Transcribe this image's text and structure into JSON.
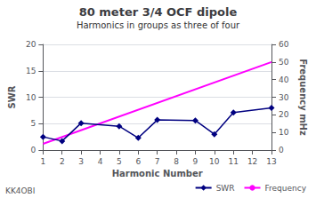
{
  "chart_data": {
    "type": "line",
    "title": "80 meter 3/4 OCF dipole",
    "subtitle": "Harmonics in groups as three of four",
    "xlabel": "Harmonic Number",
    "ylabel": "SWR",
    "y2label": "Frequency mHz",
    "annotations": [
      "KK4OBI"
    ],
    "series": [
      {
        "name": "SWR",
        "color": "#000080",
        "marker": "diamond",
        "x": [
          1,
          2,
          3,
          5,
          6,
          7,
          9,
          10,
          11,
          13
        ],
        "values": [
          2.5,
          1.7,
          5.1,
          4.5,
          2.3,
          5.7,
          5.6,
          3.0,
          7.1,
          8.0
        ]
      },
      {
        "name": "Frequency",
        "color": "#FF00FF",
        "axis": "y2",
        "x": [
          1,
          13
        ],
        "values": [
          3.5,
          50.0
        ]
      }
    ],
    "xlim": [
      1,
      13
    ],
    "xticks": [
      1,
      2,
      3,
      4,
      5,
      6,
      7,
      8,
      9,
      10,
      11,
      12,
      13
    ],
    "ylim": [
      0,
      20
    ],
    "yticks": [
      0,
      5,
      10,
      15,
      20
    ],
    "y2lim": [
      0,
      60
    ],
    "y2ticks": [
      0,
      10,
      20,
      30,
      40,
      50,
      60
    ],
    "grid": true,
    "legend": "lower right"
  }
}
